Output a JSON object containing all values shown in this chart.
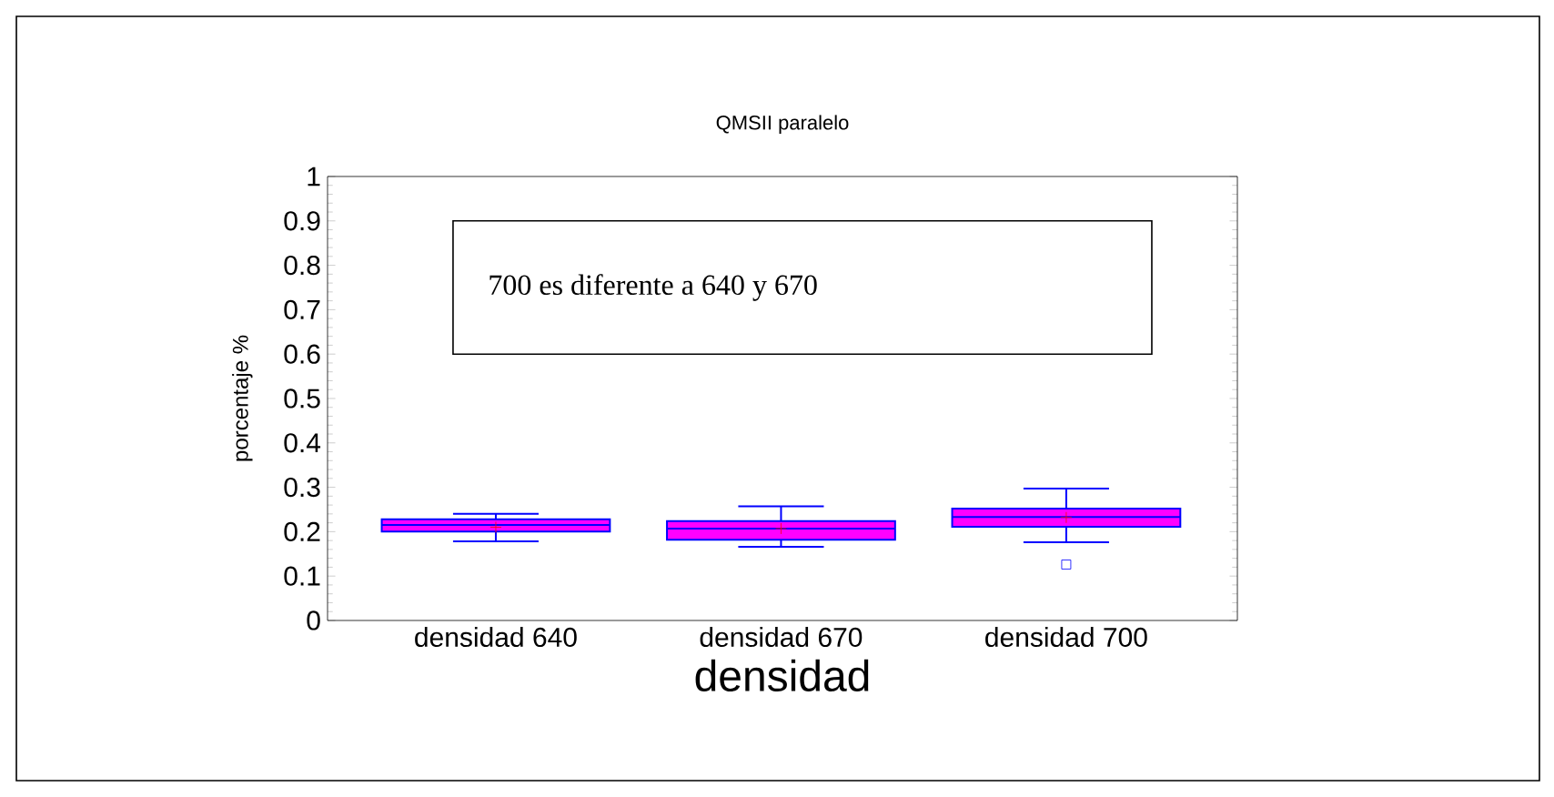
{
  "chart_data": {
    "type": "box",
    "title": "QMSII paralelo",
    "xlabel": "densidad",
    "ylabel": "porcentaje %",
    "categories": [
      "densidad 640",
      "densidad 670",
      "densidad 700"
    ],
    "boxes": [
      {
        "low": 0.178,
        "q1": 0.2,
        "median": 0.215,
        "q3": 0.228,
        "high": 0.24,
        "mean": 0.21
      },
      {
        "low": 0.166,
        "q1": 0.182,
        "median": 0.207,
        "q3": 0.224,
        "high": 0.257,
        "mean": 0.207
      },
      {
        "low": 0.176,
        "q1": 0.211,
        "median": 0.233,
        "q3": 0.252,
        "high": 0.297,
        "mean": 0.232,
        "outliers": [
          0.126
        ]
      }
    ],
    "color": "#ff00ff",
    "ylim": [
      0,
      1
    ],
    "yticks": [
      0,
      0.1,
      0.2,
      0.3,
      0.4,
      0.5,
      0.6,
      0.7,
      0.8,
      0.9,
      1
    ],
    "grid": false,
    "annotations": [
      "700 es diferente a 640 y 670"
    ]
  }
}
